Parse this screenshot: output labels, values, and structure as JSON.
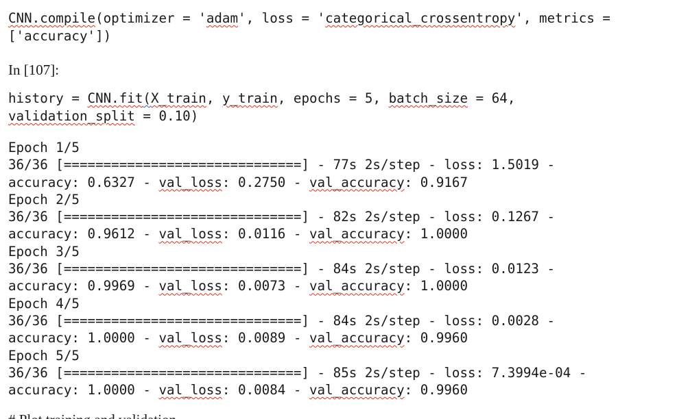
{
  "cells": {
    "compile": {
      "line1": {
        "obj": "CNN.compile",
        "a": "(optimizer = '",
        "opt": "adam",
        "b": "', loss = '",
        "loss": "categorical_crossentropy",
        "c": "', metrics ="
      },
      "line2": "['accuracy'])"
    },
    "prompt": "In [107]:",
    "fit": {
      "line1": {
        "a": "history = ",
        "obj": "CNN.fit",
        "b": "(",
        "x": "X_train",
        "c": ", ",
        "y": "y_train",
        "d": ", epochs = 5, ",
        "bs": "batch_size",
        "e": " = 64,"
      },
      "line2": {
        "vs": "validation_split",
        "rest": " = 0.10)"
      }
    }
  },
  "output": {
    "bar": "36/36 [==============================]",
    "val_loss_label": "val_loss",
    "val_acc_label": "val_accuracy",
    "epochs": [
      {
        "header": "Epoch 1/5",
        "stats": " - 77s 2s/step - loss: 1.5019 -",
        "acc": "accuracy: 0.6327 - ",
        "vl": ": 0.2750 - ",
        "va": ": 0.9167"
      },
      {
        "header": "Epoch 2/5",
        "stats": " - 82s 2s/step - loss: 0.1267 -",
        "acc": "accuracy: 0.9612 - ",
        "vl": ": 0.0116 - ",
        "va": ": 1.0000"
      },
      {
        "header": "Epoch 3/5",
        "stats": " - 84s 2s/step - loss: 0.0123 -",
        "acc": "accuracy: 0.9969 - ",
        "vl": ": 0.0073 - ",
        "va": ": 1.0000"
      },
      {
        "header": "Epoch 4/5",
        "stats": " - 84s 2s/step - loss: 0.0028 -",
        "acc": "accuracy: 1.0000 - ",
        "vl": ": 0.0089 - ",
        "va": ": 0.9960"
      },
      {
        "header": "Epoch 5/5",
        "stats": " - 85s 2s/step - loss: 7.3994e-04 -",
        "acc": "accuracy: 1.0000 - ",
        "vl": ": 0.0084 - ",
        "va": ": 0.9960"
      }
    ]
  },
  "cut_line": "# Plot training and validation"
}
